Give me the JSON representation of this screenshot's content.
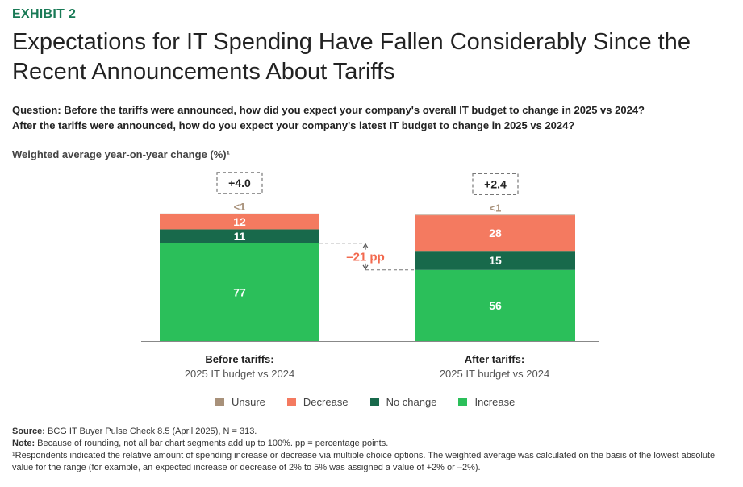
{
  "exhibit": "EXHIBIT 2",
  "title": "Expectations for IT Spending Have Fallen Considerably Since the Recent Announcements About Tariffs",
  "question_line1": "Question: Before the tariffs were announced, how did you expect your company's overall IT budget to change in 2025 vs 2024?",
  "question_line2": "After the tariffs were announced, how do you expect your company's latest IT budget to change in 2025 vs 2024?",
  "chart_data": {
    "type": "bar",
    "stacked": true,
    "ylabel": "Weighted average year-on-year change (%)¹",
    "categories": [
      {
        "label": "Before tariffs:",
        "sublabel": "2025 IT budget vs 2024",
        "weighted_avg": "+4.0"
      },
      {
        "label": "After tariffs:",
        "sublabel": "2025 IT budget vs 2024",
        "weighted_avg": "+2.4"
      }
    ],
    "series": [
      {
        "name": "Increase",
        "color": "#2bbf5a",
        "values": [
          77,
          56
        ],
        "labels": [
          "77",
          "56"
        ]
      },
      {
        "name": "No change",
        "color": "#18694b",
        "values": [
          11,
          15
        ],
        "labels": [
          "11",
          "15"
        ]
      },
      {
        "name": "Decrease",
        "color": "#f47a60",
        "values": [
          12,
          28
        ],
        "labels": [
          "12",
          "28"
        ]
      },
      {
        "name": "Unsure",
        "color": "#a8917a",
        "values": [
          0.4,
          0.4
        ],
        "labels": [
          "<1",
          "<1"
        ]
      }
    ],
    "annotation": {
      "text": "–21 pp",
      "from": 77,
      "to": 56
    },
    "ylim": [
      0,
      100
    ]
  },
  "legend": [
    {
      "name": "Unsure",
      "color": "#a8917a"
    },
    {
      "name": "Decrease",
      "color": "#f47a60"
    },
    {
      "name": "No change",
      "color": "#18694b"
    },
    {
      "name": "Increase",
      "color": "#2bbf5a"
    }
  ],
  "footnotes": {
    "source_label": "Source:",
    "source_text": "BCG IT Buyer Pulse Check 8.5 (April 2025), N = 313.",
    "note_label": "Note:",
    "note_text": "Because of rounding, not all bar chart segments add up to 100%. pp = percentage points.",
    "footnote1": "¹Respondents indicated the relative amount of spending increase or decrease via multiple choice options. The weighted average was calculated on the basis of the lowest absolute value for the range (for example, an expected increase or decrease of 2% to 5% was assigned a value of +2% or –2%)."
  }
}
